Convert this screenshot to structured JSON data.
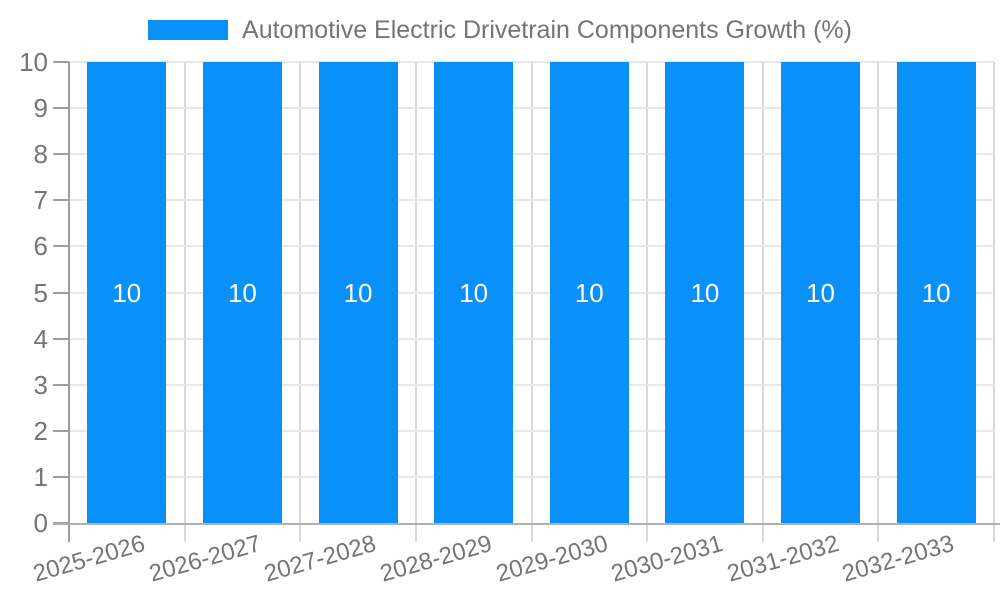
{
  "legend": {
    "label": "Automotive Electric Drivetrain Components Growth (%)"
  },
  "colors": {
    "bar": "#0990f9",
    "bar_label": "#ffffff",
    "axis_line": "#9e9e9e",
    "baseline": "#b0b0b0",
    "h_gridline": "#e7e7e7",
    "v_gridline": "#d9d9d9",
    "text": "#757575"
  },
  "chart_data": {
    "type": "bar",
    "title": "Automotive Electric Drivetrain Components Growth (%)",
    "categories": [
      "2025-2026",
      "2026-2027",
      "2027-2028",
      "2028-2029",
      "2029-2030",
      "2030-2031",
      "2031-2032",
      "2032-2033"
    ],
    "series": [
      {
        "name": "Automotive Electric Drivetrain Components Growth (%)",
        "values": [
          10,
          10,
          10,
          10,
          10,
          10,
          10,
          10
        ]
      }
    ],
    "bar_value_labels": [
      "10",
      "10",
      "10",
      "10",
      "10",
      "10",
      "10",
      "10"
    ],
    "ytick_labels": [
      "0",
      "1",
      "2",
      "3",
      "4",
      "5",
      "6",
      "7",
      "8",
      "9",
      "10"
    ],
    "xlabel": "",
    "ylabel": "",
    "ylim": [
      0,
      10
    ],
    "ytick_step": 1,
    "grid": "on",
    "legend_position": "top-center",
    "x_label_rotation_deg": -16
  }
}
